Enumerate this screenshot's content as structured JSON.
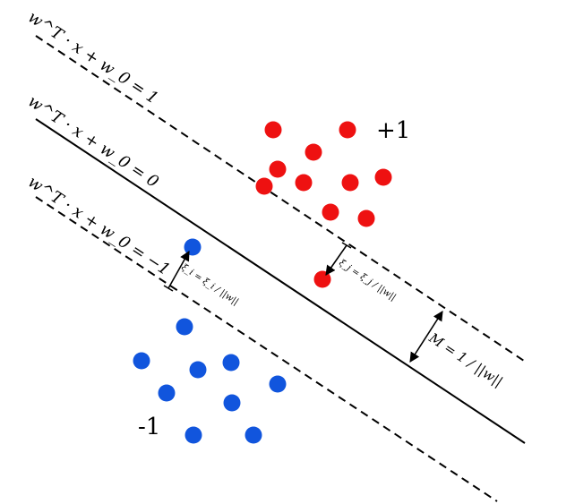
{
  "hyperplanes": {
    "upper": {
      "label": "w^T · x + w_0 = 1",
      "style": "dashed"
    },
    "middle": {
      "label": "w^T · x + w_0 = 0",
      "style": "solid"
    },
    "lower": {
      "label": "w^T · x + w_0 = −1",
      "style": "dashed"
    }
  },
  "classes": {
    "positive": {
      "label": "+1",
      "color": "#ee1111"
    },
    "negative": {
      "label": "-1",
      "color": "#1155dd"
    }
  },
  "slack": {
    "i": {
      "label": "ξ_i = ξ_i / ||w||"
    },
    "j": {
      "label": "ξ_j = ξ_j / ||w||"
    }
  },
  "margin": {
    "label": "M = 1 / ||w||"
  }
}
